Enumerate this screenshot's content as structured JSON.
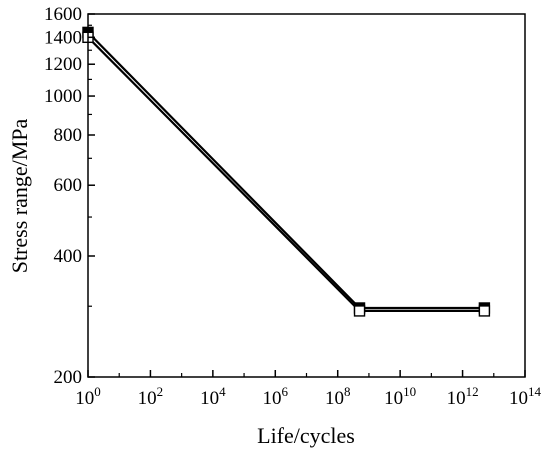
{
  "chart_data": {
    "type": "line",
    "title": "",
    "xlabel": "Life/cycles",
    "ylabel": "Stress range/MPa",
    "x_scale": "log",
    "y_scale": "log",
    "xlim": [
      1,
      100000000000000
    ],
    "ylim": [
      200,
      1600
    ],
    "x_ticks": [
      {
        "value": 1,
        "base": "10",
        "exp": "0"
      },
      {
        "value": 100,
        "base": "10",
        "exp": "2"
      },
      {
        "value": 10000,
        "base": "10",
        "exp": "4"
      },
      {
        "value": 1000000,
        "base": "10",
        "exp": "6"
      },
      {
        "value": 100000000,
        "base": "10",
        "exp": "8"
      },
      {
        "value": 10000000000,
        "base": "10",
        "exp": "10"
      },
      {
        "value": 1000000000000,
        "base": "10",
        "exp": "12"
      },
      {
        "value": 100000000000000,
        "base": "10",
        "exp": "14"
      }
    ],
    "y_ticks": [
      {
        "value": 200,
        "label": "200"
      },
      {
        "value": 400,
        "label": "400"
      },
      {
        "value": 600,
        "label": "600"
      },
      {
        "value": 800,
        "label": "800"
      },
      {
        "value": 1000,
        "label": "1000"
      },
      {
        "value": 1200,
        "label": "1200"
      },
      {
        "value": 1400,
        "label": "1400"
      },
      {
        "value": 1600,
        "label": "1600"
      }
    ],
    "grid": false,
    "legend": "none",
    "series": [
      {
        "marker": "filled-square",
        "color": "#000000",
        "points": [
          {
            "x": 1,
            "y": 1440
          },
          {
            "x": 500000000,
            "y": 297
          },
          {
            "x": 5000000000000,
            "y": 297
          }
        ]
      },
      {
        "marker": "open-square",
        "color": "#000000",
        "points": [
          {
            "x": 1,
            "y": 1400
          },
          {
            "x": 500000000,
            "y": 292
          },
          {
            "x": 5000000000000,
            "y": 292
          }
        ]
      }
    ]
  }
}
